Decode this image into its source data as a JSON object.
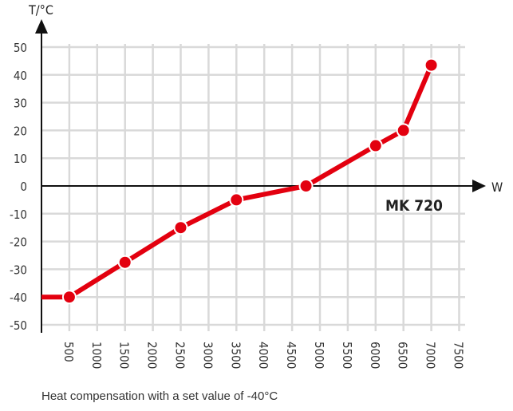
{
  "chart_data": {
    "type": "line",
    "ylabel": "T/°C",
    "xlabel": "W",
    "annotation": "MK 720",
    "caption": "Heat compensation with a set value of -40°C",
    "xlim": [
      0,
      7500
    ],
    "ylim": [
      -50,
      50
    ],
    "x_ticks": [
      "500",
      "1000",
      "1500",
      "2000",
      "2500",
      "3000",
      "3500",
      "4000",
      "4500",
      "5000",
      "5500",
      "6000",
      "6500",
      "7000",
      "7500"
    ],
    "y_ticks": [
      "50",
      "40",
      "30",
      "20",
      "10",
      "0",
      "-10",
      "-20",
      "-30",
      "-40",
      "-50"
    ],
    "grid": true,
    "series_color": "#e3000f",
    "lead_in": {
      "x": [
        0,
        500
      ],
      "y": [
        -40,
        -40
      ]
    },
    "points": {
      "x": [
        500,
        1500,
        2500,
        3500,
        4750,
        6000,
        6500,
        7000
      ],
      "y": [
        -40,
        -27.5,
        -15,
        -5,
        0,
        14.5,
        20,
        43.5
      ]
    }
  }
}
